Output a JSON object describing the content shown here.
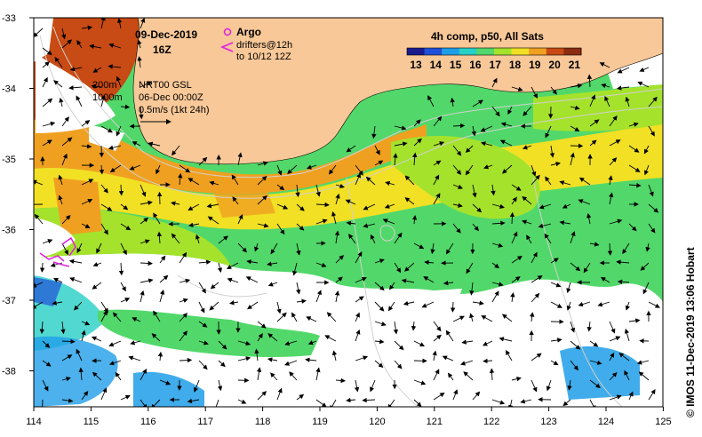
{
  "map": {
    "date": "09-Dec-2019",
    "hour": "16Z",
    "composite_label": "4h comp, p50, All Sats",
    "colorbar": {
      "ticks": [
        "13",
        "14",
        "15",
        "16",
        "17",
        "18",
        "19",
        "20",
        "21"
      ],
      "colors": [
        "#1a1a8c",
        "#1f4fd8",
        "#1f9ee8",
        "#25d0c6",
        "#52d86a",
        "#a5e22c",
        "#f1e024",
        "#f0a020",
        "#c84a14",
        "#8b2c10"
      ]
    },
    "legend": {
      "argo_label": "Argo",
      "drifters_line1": "drifters@12h",
      "drifters_line2": "to 10/12 12Z",
      "contour_200": "200m",
      "contour_1000": "1000m",
      "currents_source": "NRT00 GSL",
      "currents_date": "06-Dec 00:00Z",
      "scale_label": "0.5m/s (1kt 24h)"
    },
    "lat_ticks": [
      "-33",
      "-34",
      "-35",
      "-36",
      "-37",
      "-38"
    ],
    "lon_ticks": [
      "114",
      "115",
      "116",
      "117",
      "118",
      "119",
      "120",
      "121",
      "122",
      "123",
      "124",
      "125"
    ],
    "credit": "© IMOS 11-Dec-2019 13:06 Hobart",
    "colors": {
      "land": "#f8c898",
      "cloud": "#ffffff",
      "argo": "#e020e0",
      "drifter": "#e020e0"
    }
  }
}
